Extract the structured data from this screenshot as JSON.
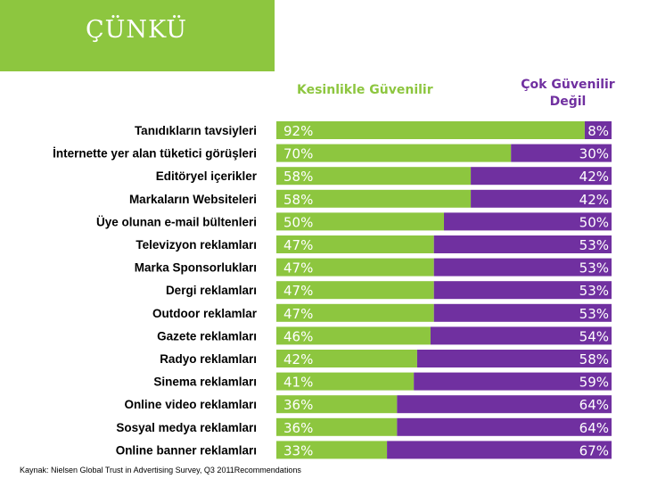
{
  "header": {
    "title": "ÇÜNKÜ"
  },
  "colors": {
    "green": "#8dc63f",
    "purple": "#7030a0",
    "text": "#000000",
    "label_text": "#ffffff"
  },
  "chart_data": {
    "type": "bar",
    "orientation": "horizontal",
    "stacked": true,
    "categories": [
      "Tanıdıkların   tavsiyleri",
      "İnternette yer alan tüketici görüşleri",
      "Editöryel içerikler",
      "Markaların Websiteleri",
      "Üye olunan e-mail bültenleri",
      "Televizyon reklamları",
      "Marka Sponsorlukları",
      "Dergi reklamları",
      "Outdoor reklamlar",
      "Gazete reklamları",
      "Radyo reklamları",
      "Sinema reklamları",
      "Online video reklamları",
      "Sosyal medya reklamları",
      "Online banner reklamları"
    ],
    "series": [
      {
        "name": "Kesinlikle Güvenilir",
        "values": [
          92,
          70,
          58,
          58,
          50,
          47,
          47,
          47,
          47,
          46,
          42,
          41,
          36,
          36,
          33
        ]
      },
      {
        "name": "Çok Güvenilir Değil",
        "values": [
          8,
          30,
          42,
          42,
          50,
          53,
          53,
          53,
          53,
          54,
          58,
          59,
          64,
          64,
          67
        ]
      }
    ],
    "value_suffix": "%",
    "xlim": [
      0,
      100
    ]
  },
  "legend": {
    "green_label": "Kesinlikle Güvenilir",
    "purple_line1": "Çok Güvenilir",
    "purple_line2": "Değil"
  },
  "footer": {
    "source": "Kaynak: Nielsen Global Trust in Advertising Survey, Q3 2011Recommendations"
  }
}
